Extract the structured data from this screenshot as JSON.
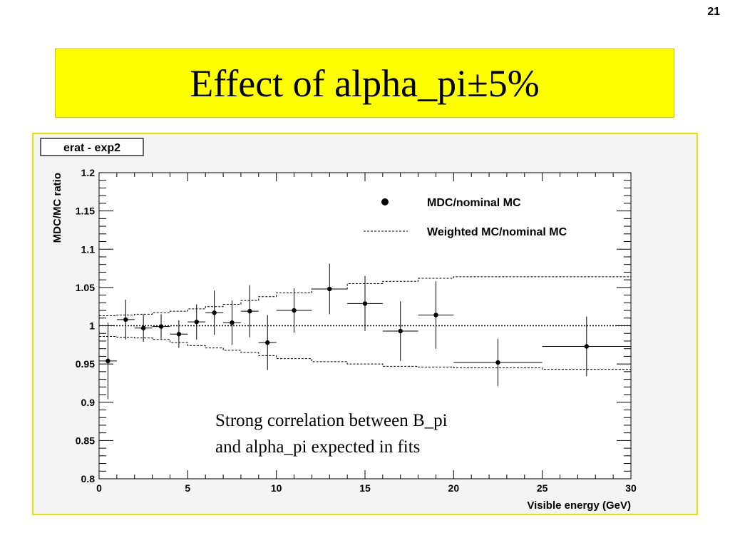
{
  "slide_number": "21",
  "title": "Effect of alpha_pi±5%",
  "histogram_name": "erat - exp2",
  "annotation": {
    "line1": "Strong correlation between B_pi",
    "line2": "and alpha_pi expected in fits"
  },
  "chart_data": {
    "type": "scatter",
    "xlabel": "Visible energy (GeV)",
    "ylabel": "MDC/MC ratio",
    "xlim": [
      0,
      30
    ],
    "ylim": [
      0.8,
      1.2
    ],
    "x_ticks": [
      "0",
      "5",
      "10",
      "15",
      "20",
      "25",
      "30"
    ],
    "y_ticks": [
      "0.8",
      "0.85",
      "0.9",
      "0.95",
      "1",
      "1.05",
      "1.1",
      "1.15",
      "1.2"
    ],
    "reference_line": 1.0,
    "legend": [
      "MDC/nominal MC",
      "Weighted MC/nominal MC"
    ],
    "series": [
      {
        "name": "MDC/nominal MC",
        "style": "points-with-errors",
        "points": [
          {
            "x": 0.5,
            "y": 0.954,
            "xlo": 0,
            "xhi": 1,
            "err": 0.05
          },
          {
            "x": 1.5,
            "y": 1.008,
            "xlo": 1,
            "xhi": 2,
            "err": 0.026
          },
          {
            "x": 2.5,
            "y": 0.997,
            "xlo": 2,
            "xhi": 3,
            "err": 0.018
          },
          {
            "x": 3.5,
            "y": 0.999,
            "xlo": 3,
            "xhi": 4,
            "err": 0.016
          },
          {
            "x": 4.5,
            "y": 0.989,
            "xlo": 4,
            "xhi": 5,
            "err": 0.018
          },
          {
            "x": 5.5,
            "y": 1.005,
            "xlo": 5,
            "xhi": 6,
            "err": 0.023
          },
          {
            "x": 6.5,
            "y": 1.017,
            "xlo": 6,
            "xhi": 7,
            "err": 0.029
          },
          {
            "x": 7.5,
            "y": 1.004,
            "xlo": 7,
            "xhi": 8,
            "err": 0.029
          },
          {
            "x": 8.5,
            "y": 1.019,
            "xlo": 8,
            "xhi": 9,
            "err": 0.034
          },
          {
            "x": 9.5,
            "y": 0.978,
            "xlo": 9,
            "xhi": 10,
            "err": 0.036
          },
          {
            "x": 11.0,
            "y": 1.02,
            "xlo": 10,
            "xhi": 12,
            "err": 0.029
          },
          {
            "x": 13.0,
            "y": 1.048,
            "xlo": 12,
            "xhi": 14,
            "err": 0.033
          },
          {
            "x": 15.0,
            "y": 1.029,
            "xlo": 14,
            "xhi": 16,
            "err": 0.036
          },
          {
            "x": 17.0,
            "y": 0.993,
            "xlo": 16,
            "xhi": 18,
            "err": 0.039
          },
          {
            "x": 19.0,
            "y": 1.014,
            "xlo": 18,
            "xhi": 20,
            "err": 0.044
          },
          {
            "x": 22.5,
            "y": 0.952,
            "xlo": 20,
            "xhi": 25,
            "err": 0.031
          },
          {
            "x": 27.5,
            "y": 0.973,
            "xlo": 25,
            "xhi": 30,
            "err": 0.039
          }
        ]
      },
      {
        "name": "Weighted MC/nominal MC",
        "style": "dashed-step-band",
        "edges": [
          0,
          1,
          2,
          3,
          4,
          5,
          6,
          7,
          8,
          9,
          10,
          12,
          14,
          16,
          18,
          20,
          25,
          30
        ],
        "upper": [
          1.013,
          1.014,
          1.015,
          1.017,
          1.019,
          1.022,
          1.025,
          1.028,
          1.033,
          1.038,
          1.043,
          1.048,
          1.055,
          1.058,
          1.062,
          1.064,
          1.064
        ],
        "lower": [
          0.986,
          0.985,
          0.984,
          0.982,
          0.978,
          0.974,
          0.971,
          0.968,
          0.965,
          0.961,
          0.957,
          0.953,
          0.95,
          0.947,
          0.946,
          0.945,
          0.943
        ]
      }
    ]
  }
}
